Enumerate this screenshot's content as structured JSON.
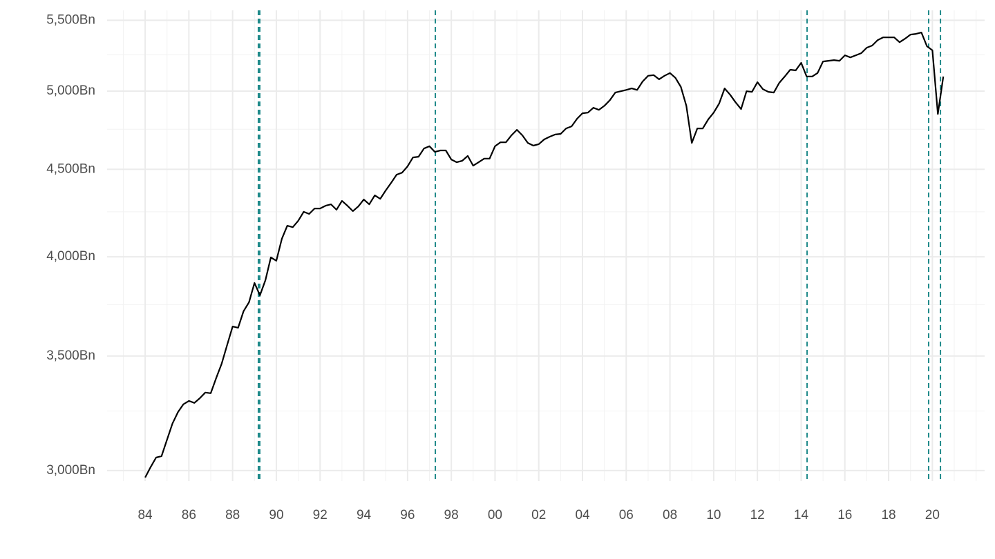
{
  "chart_data": {
    "type": "line",
    "log_scale_y": true,
    "grid": true,
    "xlim": [
      1982.26,
      2022.39
    ],
    "ylim": [
      2958,
      5574
    ],
    "xticks": [
      {
        "value": 1984,
        "label": "84"
      },
      {
        "value": 1986,
        "label": "86"
      },
      {
        "value": 1988,
        "label": "88"
      },
      {
        "value": 1990,
        "label": "90"
      },
      {
        "value": 1992,
        "label": "92"
      },
      {
        "value": 1994,
        "label": "94"
      },
      {
        "value": 1996,
        "label": "96"
      },
      {
        "value": 1998,
        "label": "98"
      },
      {
        "value": 2000,
        "label": "00"
      },
      {
        "value": 2002,
        "label": "02"
      },
      {
        "value": 2004,
        "label": "04"
      },
      {
        "value": 2006,
        "label": "06"
      },
      {
        "value": 2008,
        "label": "08"
      },
      {
        "value": 2010,
        "label": "10"
      },
      {
        "value": 2012,
        "label": "12"
      },
      {
        "value": 2014,
        "label": "14"
      },
      {
        "value": 2016,
        "label": "16"
      },
      {
        "value": 2018,
        "label": "18"
      },
      {
        "value": 2020,
        "label": "20"
      }
    ],
    "xminorticks": [
      1983,
      1985,
      1987,
      1989,
      1991,
      1993,
      1995,
      1997,
      1999,
      2001,
      2003,
      2005,
      2007,
      2009,
      2011,
      2013,
      2015,
      2017,
      2019,
      2021,
      2022
    ],
    "yticks": [
      {
        "value": 3000,
        "label": "3,000Bn"
      },
      {
        "value": 3500,
        "label": "3,500Bn"
      },
      {
        "value": 4000,
        "label": "4,000Bn"
      },
      {
        "value": 4500,
        "label": "4,500Bn"
      },
      {
        "value": 5000,
        "label": "5,000Bn"
      },
      {
        "value": 5500,
        "label": "5,500Bn"
      }
    ],
    "yminorticks": [
      3250,
      3750,
      4250,
      4750,
      5250
    ],
    "vlines": [
      {
        "x": 1989.21,
        "width": 4
      },
      {
        "x": 1997.27,
        "width": 2
      },
      {
        "x": 2014.27,
        "width": 2
      },
      {
        "x": 2019.83,
        "width": 2
      },
      {
        "x": 2020.37,
        "width": 2
      }
    ],
    "vline_color": "#1f8a8a",
    "series": [
      {
        "color": "#000000",
        "x": [
          1984,
          1984.25,
          1984.5,
          1984.75,
          1985,
          1985.25,
          1985.5,
          1985.75,
          1986,
          1986.25,
          1986.5,
          1986.75,
          1987,
          1987.25,
          1987.5,
          1987.75,
          1988,
          1988.25,
          1988.5,
          1988.75,
          1989,
          1989.25,
          1989.5,
          1989.75,
          1990,
          1990.25,
          1990.5,
          1990.75,
          1991,
          1991.25,
          1991.5,
          1991.75,
          1992,
          1992.25,
          1992.5,
          1992.75,
          1993,
          1993.25,
          1993.5,
          1993.75,
          1994,
          1994.25,
          1994.5,
          1994.75,
          1995,
          1995.25,
          1995.5,
          1995.75,
          1996,
          1996.25,
          1996.5,
          1996.75,
          1997,
          1997.25,
          1997.5,
          1997.75,
          1998,
          1998.25,
          1998.5,
          1998.75,
          1999,
          1999.25,
          1999.5,
          1999.75,
          2000,
          2000.25,
          2000.5,
          2000.75,
          2001,
          2001.25,
          2001.5,
          2001.75,
          2002,
          2002.25,
          2002.5,
          2002.75,
          2003,
          2003.25,
          2003.5,
          2003.75,
          2004,
          2004.25,
          2004.5,
          2004.75,
          2005,
          2005.25,
          2005.5,
          2005.75,
          2006,
          2006.25,
          2006.5,
          2006.75,
          2007,
          2007.25,
          2007.5,
          2007.75,
          2008,
          2008.25,
          2008.5,
          2008.75,
          2009,
          2009.25,
          2009.5,
          2009.75,
          2010,
          2010.25,
          2010.5,
          2010.75,
          2011,
          2011.25,
          2011.5,
          2011.75,
          2012,
          2012.25,
          2012.5,
          2012.75,
          2013,
          2013.25,
          2013.5,
          2013.75,
          2014,
          2014.25,
          2014.5,
          2014.75,
          2015,
          2015.25,
          2015.5,
          2015.75,
          2016,
          2016.25,
          2016.5,
          2016.75,
          2017,
          2017.25,
          2017.5,
          2017.75,
          2018,
          2018.25,
          2018.5,
          2018.75,
          2019,
          2019.25,
          2019.5,
          2019.75,
          2020,
          2020.25,
          2020.5
        ],
        "values": [
          2972,
          3014,
          3053,
          3059,
          3127,
          3196,
          3245,
          3280,
          3295,
          3286,
          3307,
          3332,
          3329,
          3398,
          3464,
          3552,
          3642,
          3636,
          3718,
          3763,
          3862,
          3798,
          3876,
          3997,
          3979,
          4098,
          4171,
          4163,
          4199,
          4250,
          4238,
          4269,
          4269,
          4285,
          4293,
          4262,
          4313,
          4285,
          4254,
          4281,
          4321,
          4293,
          4345,
          4325,
          4374,
          4419,
          4468,
          4480,
          4518,
          4573,
          4577,
          4628,
          4642,
          4607,
          4616,
          4616,
          4560,
          4543,
          4552,
          4582,
          4522,
          4543,
          4565,
          4565,
          4642,
          4667,
          4667,
          4711,
          4746,
          4711,
          4663,
          4646,
          4655,
          4685,
          4702,
          4716,
          4720,
          4755,
          4768,
          4817,
          4853,
          4857,
          4889,
          4875,
          4902,
          4939,
          4990,
          4999,
          5008,
          5018,
          5008,
          5065,
          5104,
          5109,
          5080,
          5104,
          5123,
          5090,
          5028,
          4902,
          4663,
          4755,
          4755,
          4813,
          4857,
          4917,
          5018,
          4976,
          4925,
          4880,
          4999,
          4995,
          5060,
          5013,
          4995,
          4990,
          5056,
          5099,
          5146,
          5141,
          5194,
          5099,
          5099,
          5123,
          5203,
          5208,
          5213,
          5208,
          5247,
          5232,
          5247,
          5262,
          5301,
          5316,
          5355,
          5375,
          5375,
          5375,
          5340,
          5365,
          5395,
          5400,
          5410,
          5311,
          5282,
          4848,
          5099
        ]
      }
    ]
  }
}
